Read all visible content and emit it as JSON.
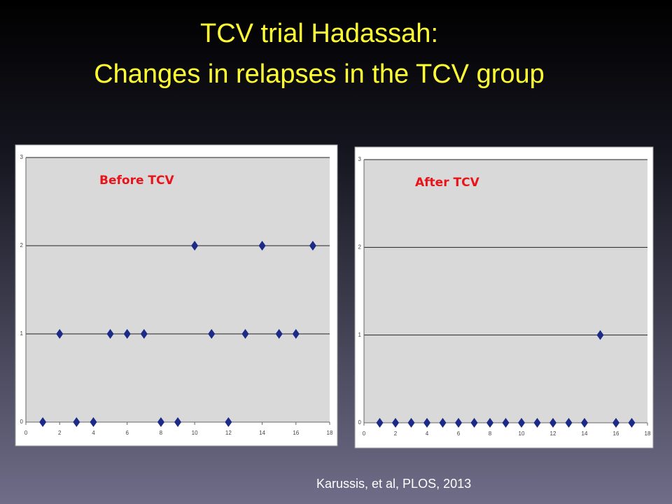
{
  "title": {
    "line1": "TCV trial Hadassah:",
    "line2": "Changes in relapses in the TCV group"
  },
  "citation": "Karussis, et al, PLOS, 2013",
  "chart_data": [
    {
      "type": "scatter",
      "title": "Before TCV",
      "color": "#1c2a88",
      "x": [
        1,
        2,
        3,
        4,
        5,
        6,
        7,
        8,
        9,
        10,
        11,
        12,
        13,
        14,
        15,
        16,
        17
      ],
      "values": [
        0,
        1,
        0,
        0,
        1,
        1,
        1,
        0,
        0,
        2,
        1,
        0,
        1,
        2,
        1,
        1,
        2
      ],
      "xlim": [
        0,
        18
      ],
      "xticks": [
        0,
        2,
        4,
        6,
        8,
        10,
        12,
        14,
        16,
        18
      ],
      "ylim": [
        0,
        3
      ],
      "yticks": [
        0,
        1,
        2,
        3
      ],
      "grid": true
    },
    {
      "type": "scatter",
      "title": "After TCV",
      "color": "#1c2a88",
      "x": [
        1,
        2,
        3,
        4,
        5,
        6,
        7,
        8,
        9,
        10,
        11,
        12,
        13,
        14,
        15,
        16,
        17
      ],
      "values": [
        0,
        0,
        0,
        0,
        0,
        0,
        0,
        0,
        0,
        0,
        0,
        0,
        0,
        0,
        1,
        0,
        0
      ],
      "xlim": [
        0,
        18
      ],
      "xticks": [
        0,
        2,
        4,
        6,
        8,
        10,
        12,
        14,
        16,
        18
      ],
      "ylim": [
        0,
        3
      ],
      "yticks": [
        0,
        1,
        2,
        3
      ],
      "grid": true
    }
  ]
}
